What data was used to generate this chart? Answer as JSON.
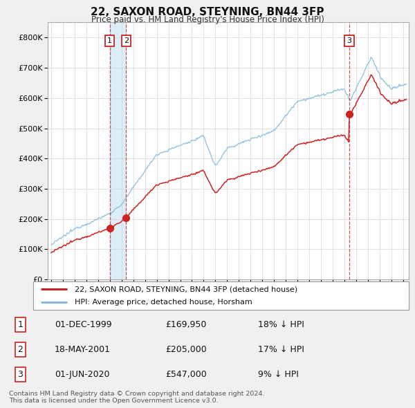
{
  "title": "22, SAXON ROAD, STEYNING, BN44 3FP",
  "subtitle": "Price paid vs. HM Land Registry's House Price Index (HPI)",
  "legend_line1": "22, SAXON ROAD, STEYNING, BN44 3FP (detached house)",
  "legend_line2": "HPI: Average price, detached house, Horsham",
  "footer1": "Contains HM Land Registry data © Crown copyright and database right 2024.",
  "footer2": "This data is licensed under the Open Government Licence v3.0.",
  "sale_points": [
    {
      "label": "1",
      "date_label": "01-DEC-1999",
      "price_label": "£169,950",
      "pct_label": "18% ↓ HPI",
      "year": 2000.0,
      "price": 169950
    },
    {
      "label": "2",
      "date_label": "18-MAY-2001",
      "price_label": "£205,000",
      "pct_label": "17% ↓ HPI",
      "year": 2001.38,
      "price": 205000
    },
    {
      "label": "3",
      "date_label": "01-JUN-2020",
      "price_label": "£547,000",
      "pct_label": "9% ↓ HPI",
      "year": 2020.42,
      "price": 547000
    }
  ],
  "hpi_color": "#88bdd8",
  "sale_color": "#cc2222",
  "marker_color": "#cc2222",
  "shade_color": "#ddeef7",
  "background_color": "#f0f0f0",
  "plot_bg_color": "#ffffff",
  "ylim": [
    0,
    850000
  ],
  "xlim_start": 1994.7,
  "xlim_end": 2025.5,
  "table_rows": [
    [
      "1",
      "01-DEC-1999",
      "£169,950",
      "18% ↓ HPI"
    ],
    [
      "2",
      "18-MAY-2001",
      "£205,000",
      "17% ↓ HPI"
    ],
    [
      "3",
      "01-JUN-2020",
      "£547,000",
      "9% ↓ HPI"
    ]
  ]
}
